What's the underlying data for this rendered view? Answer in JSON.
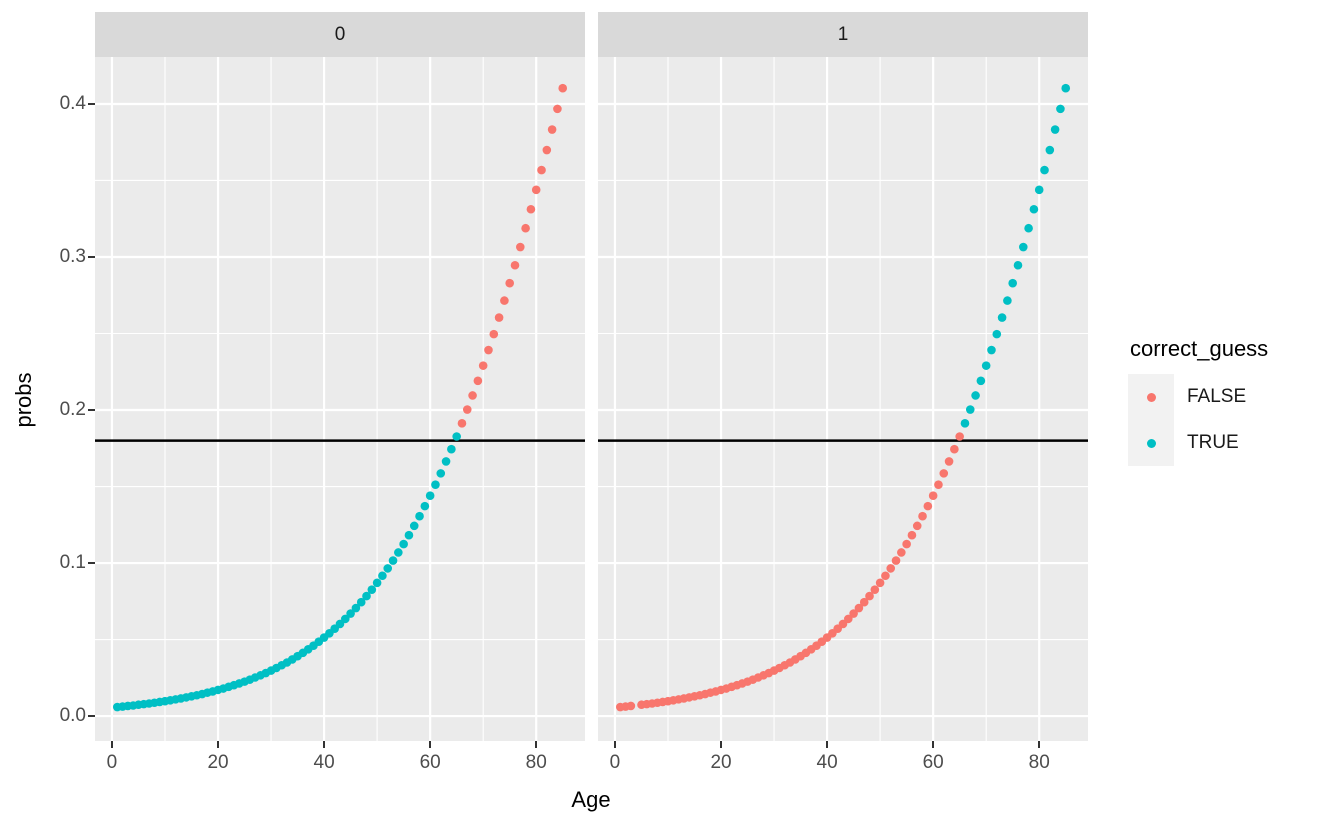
{
  "chart_data": {
    "type": "scatter",
    "title": "",
    "xlabel": "Age",
    "ylabel": "probs",
    "x_range": [
      -3.2,
      89.2
    ],
    "y_range": [
      -0.0163,
      0.4307
    ],
    "x_major_ticks": [
      0,
      20,
      40,
      60,
      80
    ],
    "x_minor_gridlines": [
      10,
      30,
      50,
      70
    ],
    "y_major_ticks": [
      0.0,
      0.1,
      0.2,
      0.3,
      0.4
    ],
    "y_tick_labels": [
      "0.0",
      "0.1",
      "0.2",
      "0.3",
      "0.4"
    ],
    "y_minor_gridlines": [
      0.05,
      0.15,
      0.25,
      0.35
    ],
    "hline_y": 0.18,
    "grid": true,
    "legend": {
      "title": "correct_guess",
      "position": "right",
      "entries": [
        {
          "label": "FALSE",
          "color": "#F8766D"
        },
        {
          "label": "TRUE",
          "color": "#00BFC4"
        }
      ]
    },
    "colors": {
      "panel_bg": "#EBEBEB",
      "strip_bg": "#D9D9D9",
      "gridline": "#FFFFFF",
      "axis_text": "#4D4D4D",
      "title_text": "#000000",
      "hline": "#000000",
      "legend_key_bg": "#F2F2F2",
      "false_point": "#F8766D",
      "true_point": "#00BFC4"
    },
    "facets": [
      {
        "label": "0",
        "series": [
          {
            "name": "TRUE",
            "color": "#00BFC4",
            "x": [
              1,
              2,
              3,
              4,
              5,
              6,
              7,
              8,
              9,
              10,
              11,
              12,
              13,
              14,
              15,
              16,
              17,
              18,
              19,
              20,
              21,
              22,
              23,
              24,
              25,
              26,
              27,
              28,
              29,
              30,
              31,
              32,
              33,
              34,
              35,
              36,
              37,
              38,
              39,
              40,
              41,
              42,
              43,
              44,
              45,
              46,
              47,
              48,
              49,
              50,
              51,
              52,
              53,
              54,
              55,
              56,
              57,
              58,
              59,
              60,
              61,
              62,
              63,
              64,
              65
            ],
            "y": [
              0.0059,
              0.0062,
              0.0066,
              0.0069,
              0.0074,
              0.0078,
              0.0082,
              0.0087,
              0.0092,
              0.0097,
              0.0103,
              0.0109,
              0.0115,
              0.0122,
              0.0129,
              0.0136,
              0.0144,
              0.0153,
              0.0161,
              0.0171,
              0.018,
              0.0191,
              0.0202,
              0.0213,
              0.0225,
              0.0238,
              0.0252,
              0.0266,
              0.0281,
              0.0297,
              0.0314,
              0.0332,
              0.035,
              0.037,
              0.0391,
              0.0413,
              0.0436,
              0.046,
              0.0486,
              0.0513,
              0.0541,
              0.0571,
              0.0602,
              0.0635,
              0.067,
              0.0706,
              0.0744,
              0.0784,
              0.0826,
              0.0871,
              0.0917,
              0.0965,
              0.1016,
              0.1069,
              0.1124,
              0.1182,
              0.1243,
              0.1306,
              0.1372,
              0.144,
              0.1512,
              0.1586,
              0.1664,
              0.1744,
              0.1827
            ]
          },
          {
            "name": "FALSE",
            "color": "#F8766D",
            "x": [
              66,
              67,
              68,
              69,
              70,
              71,
              72,
              73,
              74,
              75,
              76,
              77,
              78,
              79,
              80,
              81,
              82,
              83,
              84,
              85
            ],
            "y": [
              0.1913,
              0.2003,
              0.2095,
              0.2191,
              0.229,
              0.2392,
              0.2496,
              0.2604,
              0.2715,
              0.2829,
              0.2946,
              0.3065,
              0.3188,
              0.3312,
              0.3439,
              0.3568,
              0.3699,
              0.3833,
              0.3968,
              0.4103
            ]
          }
        ]
      },
      {
        "label": "1",
        "series": [
          {
            "name": "FALSE",
            "color": "#F8766D",
            "x": [
              1,
              2,
              3,
              5,
              6,
              7,
              8,
              9,
              10,
              11,
              12,
              13,
              14,
              15,
              16,
              17,
              18,
              19,
              20,
              21,
              22,
              23,
              24,
              25,
              26,
              27,
              28,
              29,
              30,
              31,
              32,
              33,
              34,
              35,
              36,
              37,
              38,
              39,
              40,
              41,
              42,
              43,
              44,
              45,
              46,
              47,
              48,
              49,
              50,
              51,
              52,
              53,
              54,
              55,
              56,
              57,
              58,
              59,
              60,
              61,
              62,
              63,
              64,
              65
            ],
            "y": [
              0.0059,
              0.0062,
              0.0066,
              0.0074,
              0.0078,
              0.0082,
              0.0087,
              0.0092,
              0.0097,
              0.0103,
              0.0109,
              0.0115,
              0.0122,
              0.0129,
              0.0136,
              0.0144,
              0.0153,
              0.0161,
              0.0171,
              0.018,
              0.0191,
              0.0202,
              0.0213,
              0.0225,
              0.0238,
              0.0252,
              0.0266,
              0.0281,
              0.0297,
              0.0314,
              0.0332,
              0.035,
              0.037,
              0.0391,
              0.0413,
              0.0436,
              0.046,
              0.0486,
              0.0513,
              0.0541,
              0.0571,
              0.0602,
              0.0635,
              0.067,
              0.0706,
              0.0744,
              0.0784,
              0.0826,
              0.0871,
              0.0917,
              0.0965,
              0.1016,
              0.1069,
              0.1124,
              0.1182,
              0.1243,
              0.1306,
              0.1372,
              0.144,
              0.1512,
              0.1586,
              0.1664,
              0.1744,
              0.1827
            ]
          },
          {
            "name": "TRUE",
            "color": "#00BFC4",
            "x": [
              66,
              67,
              68,
              69,
              70,
              71,
              72,
              73,
              74,
              75,
              76,
              77,
              78,
              79,
              80,
              81,
              82,
              83,
              84,
              85
            ],
            "y": [
              0.1913,
              0.2003,
              0.2095,
              0.2191,
              0.229,
              0.2392,
              0.2496,
              0.2604,
              0.2715,
              0.2829,
              0.2946,
              0.3065,
              0.3188,
              0.3312,
              0.3439,
              0.3568,
              0.3699,
              0.3833,
              0.3968,
              0.4103
            ]
          }
        ]
      }
    ]
  }
}
